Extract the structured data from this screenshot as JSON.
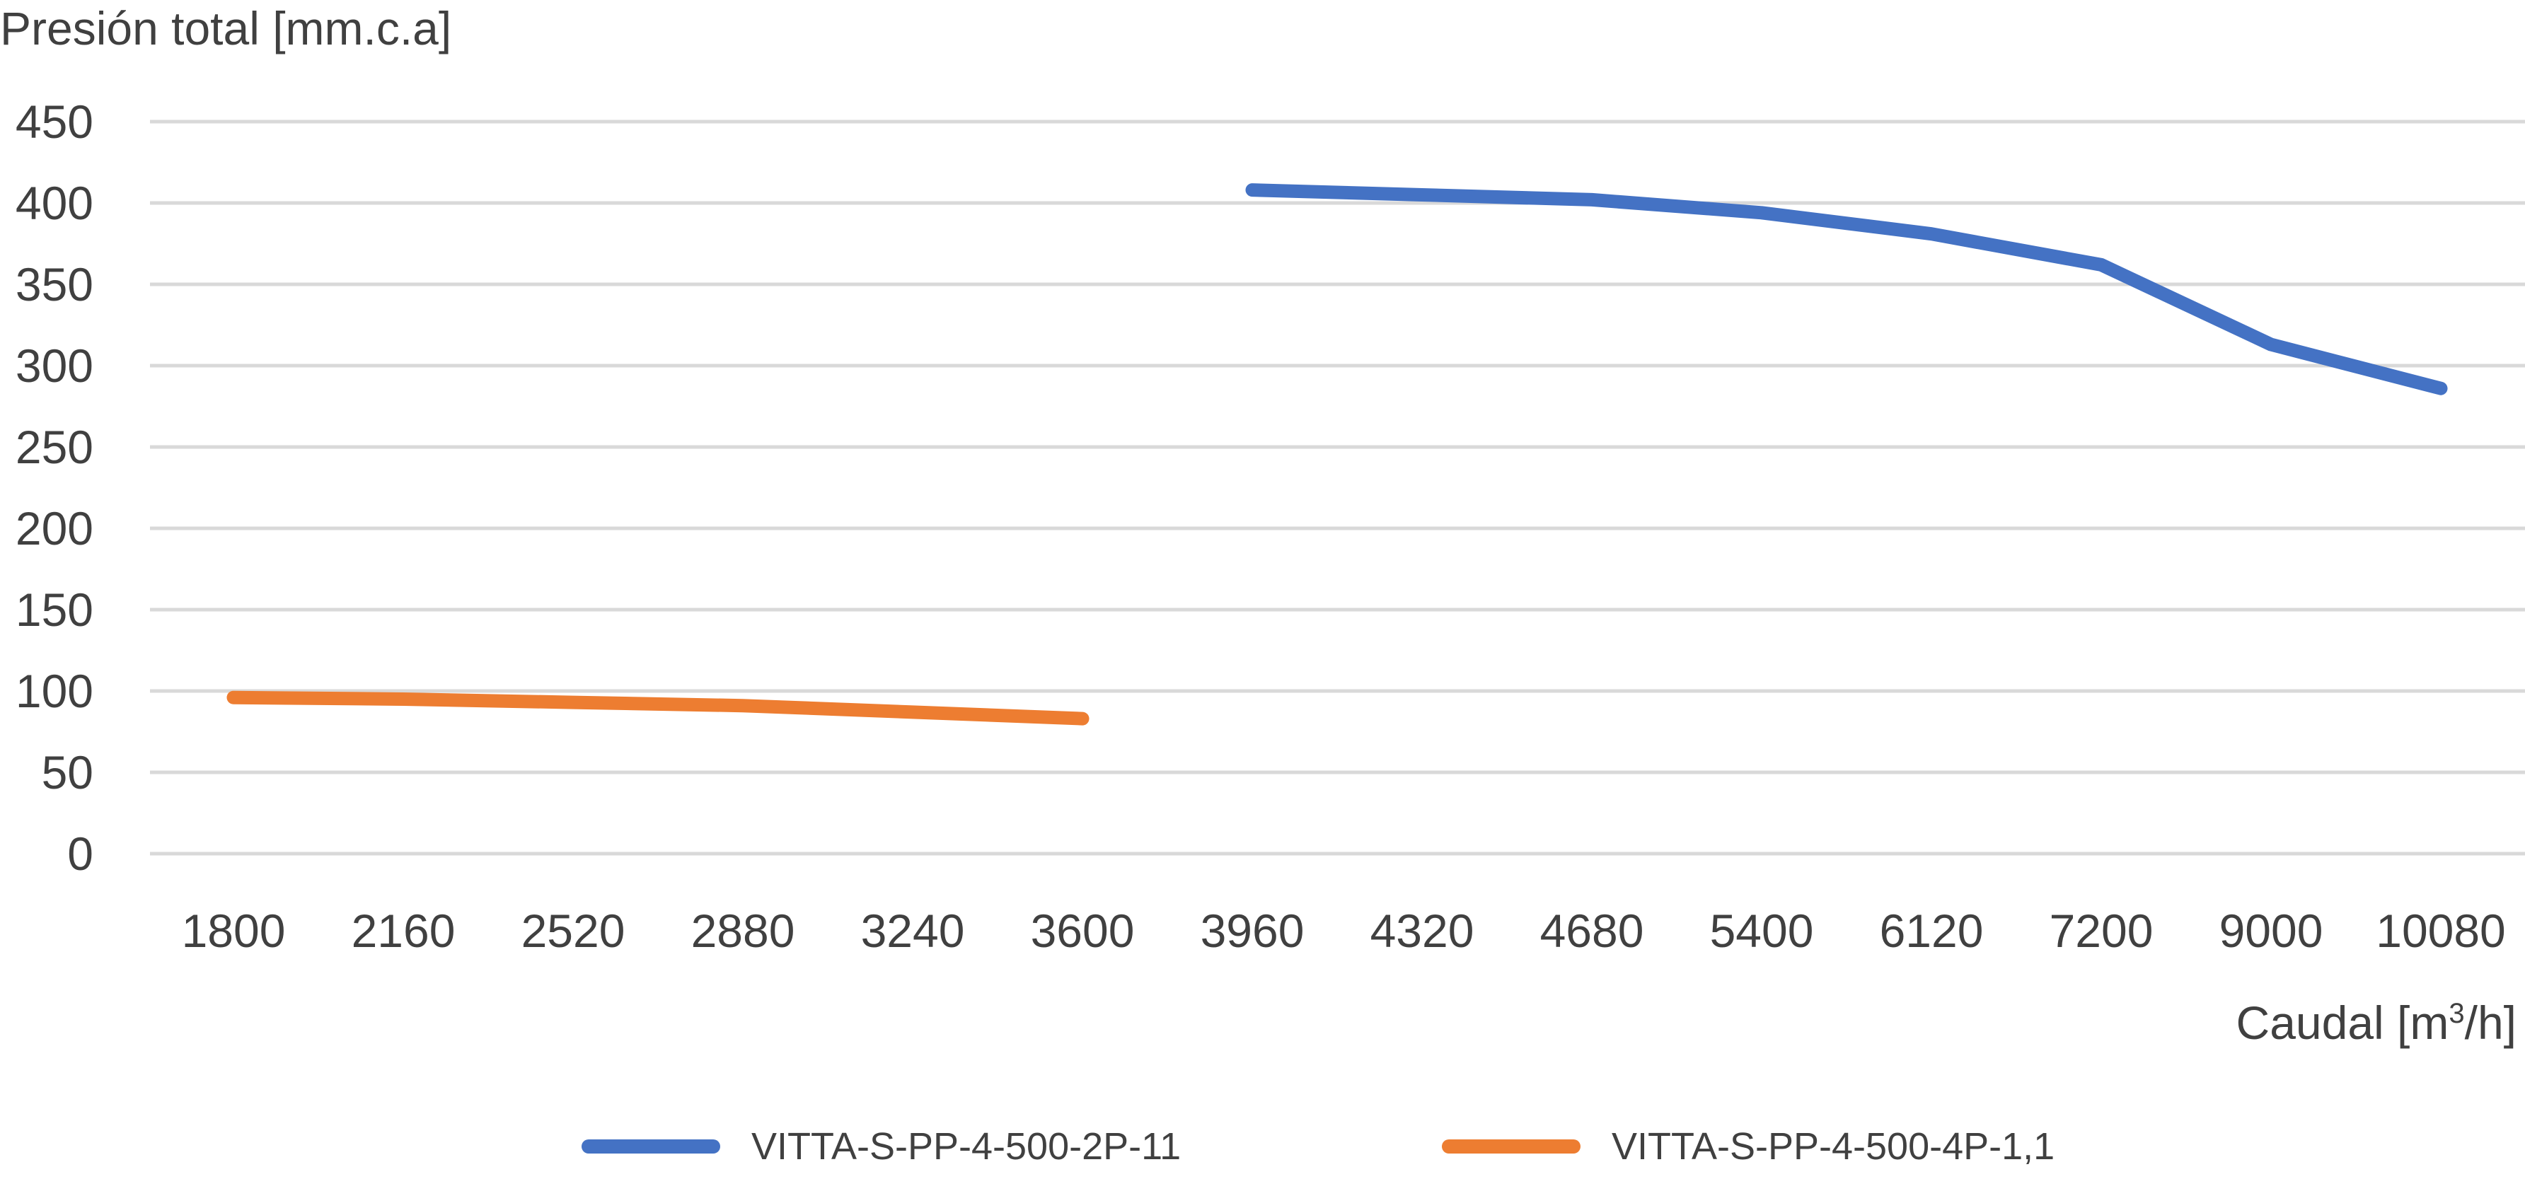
{
  "chart_data": {
    "type": "line",
    "ylabel": "Presión total [mm.c.a]",
    "xlabel_main": "Caudal [m",
    "xlabel_sup": "3",
    "xlabel_end": "/h]",
    "categories": [
      "1800",
      "2160",
      "2520",
      "2880",
      "3240",
      "3600",
      "3960",
      "4320",
      "4680",
      "5400",
      "6120",
      "7200",
      "9000",
      "10080"
    ],
    "ylim": [
      0,
      450
    ],
    "yticks": [
      0,
      50,
      100,
      150,
      200,
      250,
      300,
      350,
      400,
      450
    ],
    "grid": true,
    "legend_position": "bottom",
    "series": [
      {
        "name": "VITTA-S-PP-4-500-2P-11",
        "color": "#4472C4",
        "values": [
          null,
          null,
          null,
          null,
          null,
          null,
          408,
          405,
          402,
          394,
          381,
          362,
          313,
          286
        ]
      },
      {
        "name": "VITTA-S-PP-4-500-4P-1,1",
        "color": "#ED7D31",
        "values": [
          96,
          95,
          93,
          91,
          87,
          83,
          null,
          null,
          null,
          null,
          null,
          null,
          null,
          null
        ]
      }
    ]
  }
}
